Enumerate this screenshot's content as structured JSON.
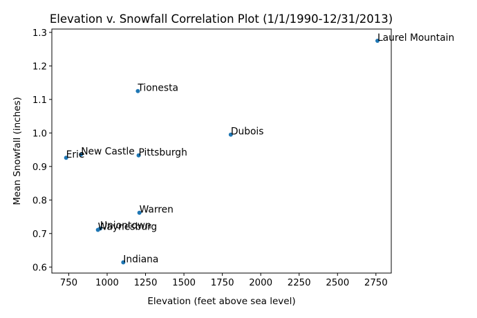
{
  "chart_data": {
    "type": "scatter",
    "title": "Elevation v. Snowfall Correlation Plot (1/1/1990-12/31/2013)",
    "xlabel": "Elevation (feet above sea level)",
    "ylabel": "Mean Snowfall (inches)",
    "xlim": [
      640,
      2850
    ],
    "ylim": [
      0.582,
      1.31
    ],
    "xticks": [
      750,
      1000,
      1250,
      1500,
      1750,
      2000,
      2250,
      2500,
      2750
    ],
    "xtick_labels": [
      "750",
      "1000",
      "1250",
      "1500",
      "1750",
      "2000",
      "2250",
      "2500",
      "2750"
    ],
    "yticks": [
      0.6,
      0.7,
      0.8,
      0.9,
      1.0,
      1.1,
      1.2,
      1.3
    ],
    "ytick_labels": [
      "0.6",
      "0.7",
      "0.8",
      "0.9",
      "1.0",
      "1.1",
      "1.2",
      "1.3"
    ],
    "grid": false,
    "marker_color": "#1f77b4",
    "points": [
      {
        "label": "Laurel Mountain",
        "x": 2760,
        "y": 1.275
      },
      {
        "label": "Tionesta",
        "x": 1200,
        "y": 1.125
      },
      {
        "label": "Dubois",
        "x": 1805,
        "y": 0.995
      },
      {
        "label": "Pittsburgh",
        "x": 1205,
        "y": 0.933
      },
      {
        "label": "New Castle",
        "x": 830,
        "y": 0.936
      },
      {
        "label": "Erie",
        "x": 733,
        "y": 0.926
      },
      {
        "label": "Warren",
        "x": 1210,
        "y": 0.762
      },
      {
        "label": "Uniontown",
        "x": 955,
        "y": 0.715
      },
      {
        "label": "Waynesburg",
        "x": 940,
        "y": 0.711
      },
      {
        "label": "Indiana",
        "x": 1105,
        "y": 0.614
      }
    ]
  }
}
